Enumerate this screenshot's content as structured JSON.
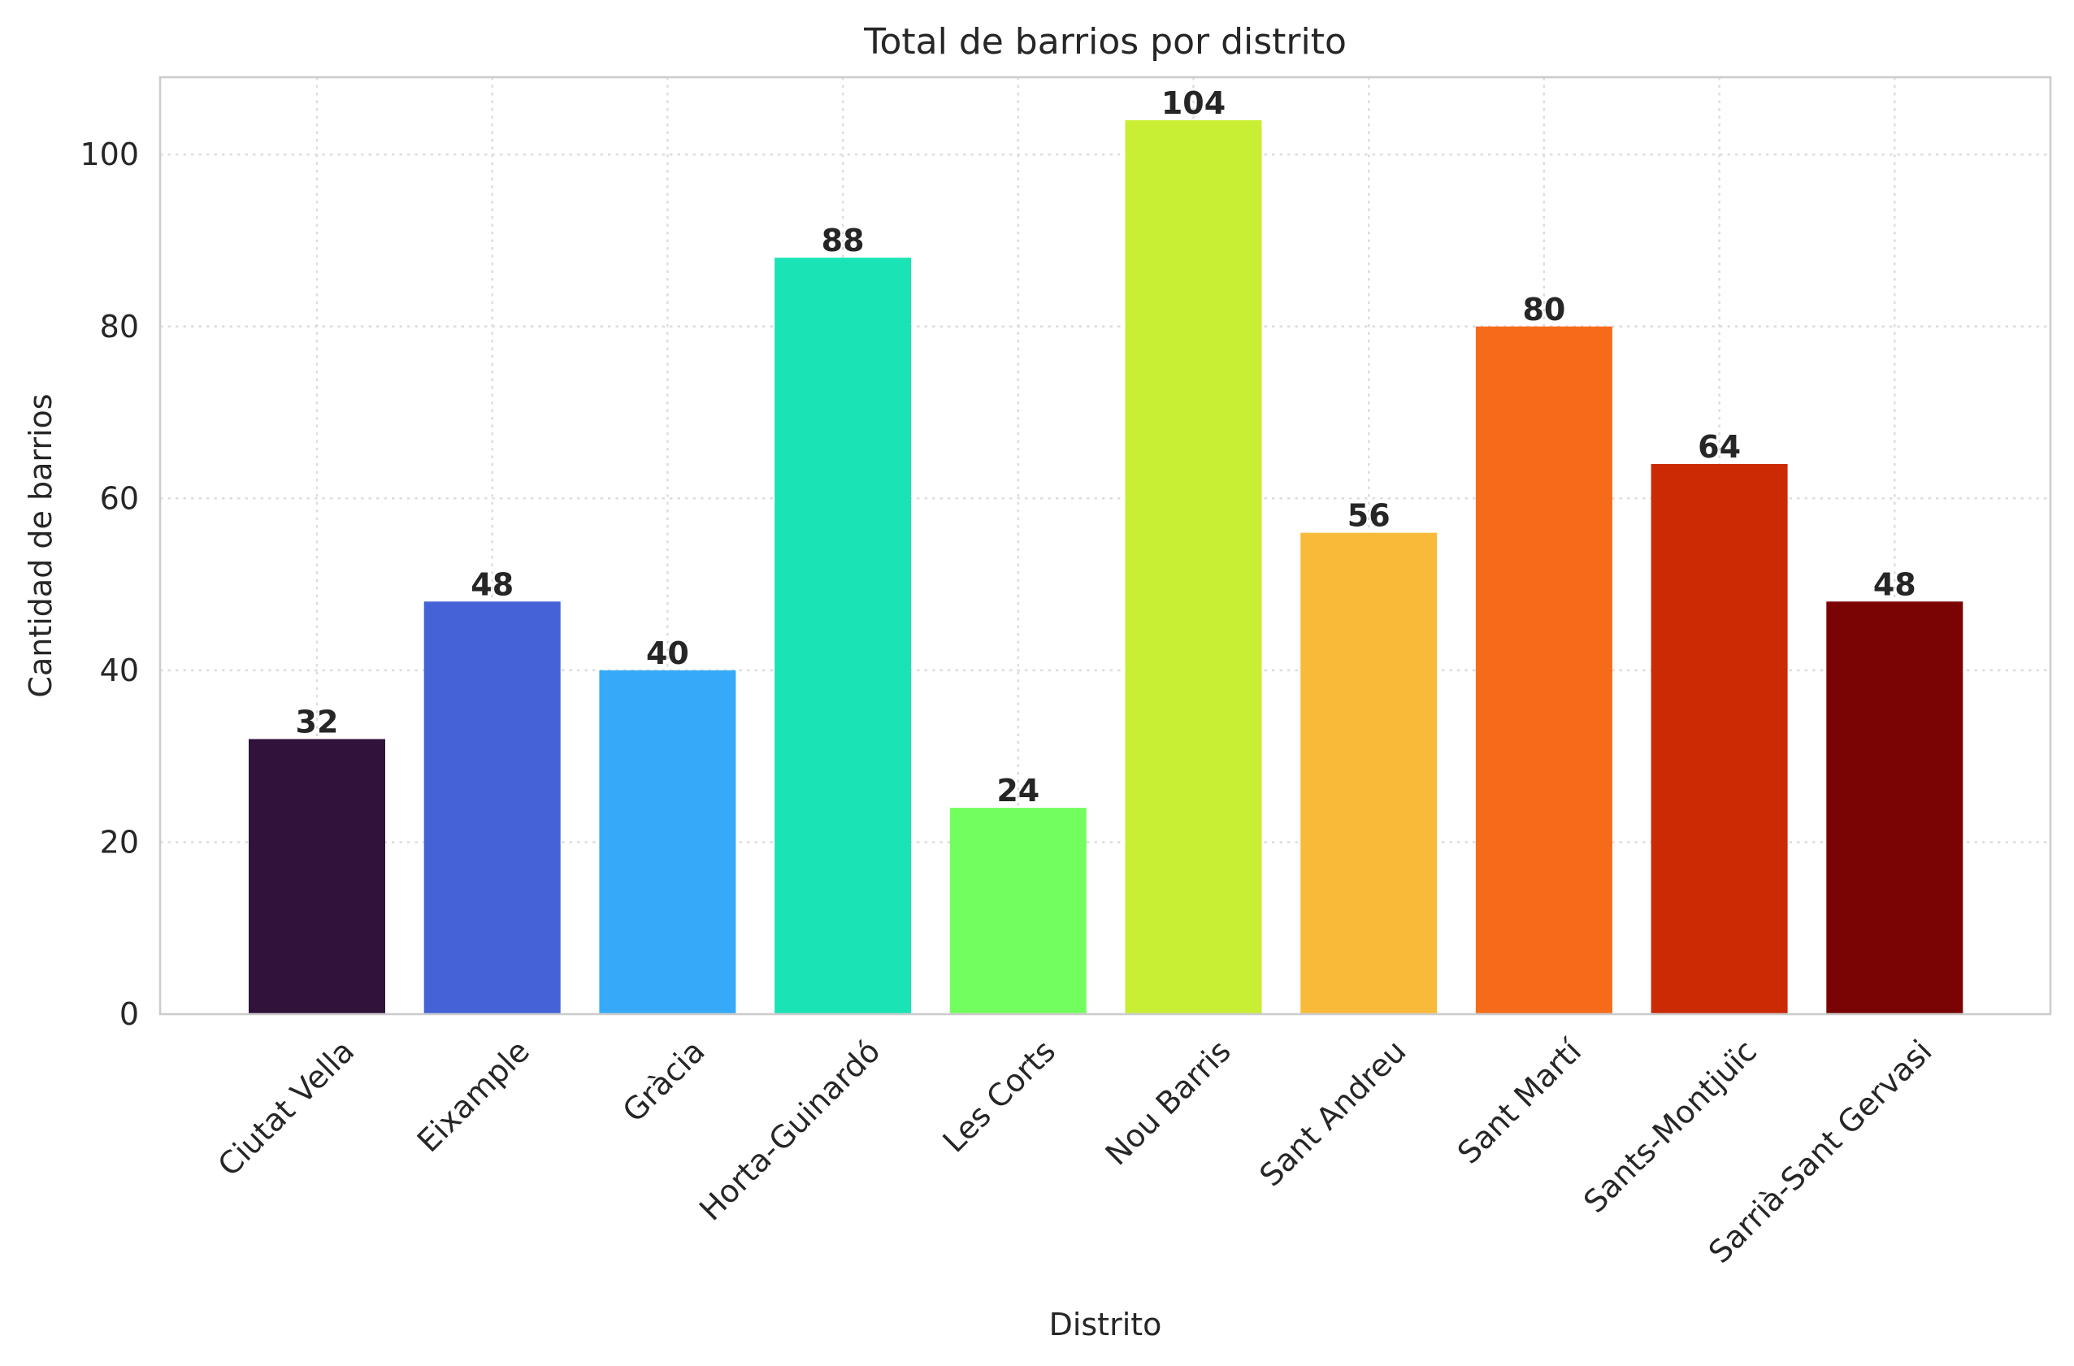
{
  "chart_data": {
    "type": "bar",
    "title": "Total de barrios por distrito",
    "xlabel": "Distrito",
    "ylabel": "Cantidad de barrios",
    "categories": [
      "Ciutat Vella",
      "Eixample",
      "Gràcia",
      "Horta-Guinardó",
      "Les Corts",
      "Nou Barris",
      "Sant Andreu",
      "Sant Martí",
      "Sants-Montjuïc",
      "Sarrià-Sant Gervasi"
    ],
    "values": [
      32,
      48,
      40,
      88,
      24,
      104,
      56,
      80,
      64,
      48
    ],
    "colors": [
      "#30123b",
      "#4662d7",
      "#36aaf9",
      "#1ae4b6",
      "#72fe5e",
      "#c8ef34",
      "#faba39",
      "#f66b19",
      "#cb2a04",
      "#7a0403"
    ],
    "ylim": [
      0,
      109
    ],
    "yticks": [
      0,
      20,
      40,
      60,
      80,
      100
    ],
    "grid": true,
    "legend": "none",
    "data_labels": true
  }
}
